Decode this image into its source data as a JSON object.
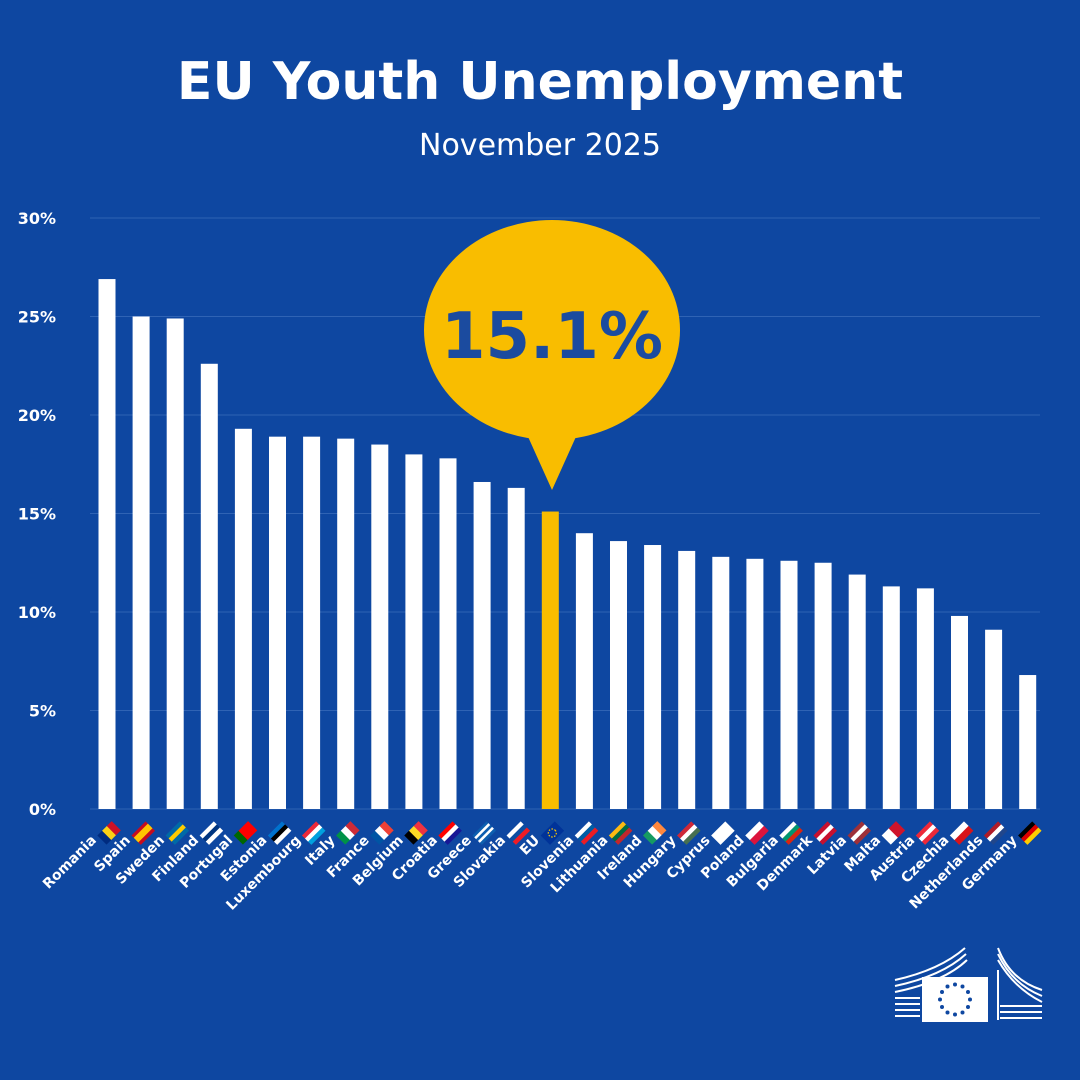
{
  "title": "EU Youth Unemployment",
  "subtitle": "November 2025",
  "chart_data": {
    "type": "bar",
    "title": "EU Youth Unemployment",
    "subtitle": "November 2025",
    "xlabel": "",
    "ylabel": "",
    "ylim": [
      0,
      30
    ],
    "yticks": [
      "0%",
      "5%",
      "10%",
      "15%",
      "20%",
      "25%",
      "30%"
    ],
    "grid": true,
    "highlight": {
      "category": "EU",
      "label": "15.1%",
      "color": "#f9bd00"
    },
    "bar_color": "#ffffff",
    "categories": [
      "Romania",
      "Spain",
      "Sweden",
      "Finland",
      "Portugal",
      "Estonia",
      "Luxembourg",
      "Italy",
      "France",
      "Belgium",
      "Croatia",
      "Greece",
      "Slovakia",
      "EU",
      "Slovenia",
      "Lithuania",
      "Ireland",
      "Hungary",
      "Cyprus",
      "Poland",
      "Bulgaria",
      "Denmark",
      "Latvia",
      "Malta",
      "Austria",
      "Czechia",
      "Netherlands",
      "Germany"
    ],
    "values": [
      26.9,
      25.0,
      24.9,
      22.6,
      19.3,
      18.9,
      18.9,
      18.8,
      18.5,
      18.0,
      17.8,
      16.6,
      16.3,
      15.1,
      14.0,
      13.6,
      13.4,
      13.1,
      12.8,
      12.7,
      12.6,
      12.5,
      11.9,
      11.3,
      11.2,
      9.8,
      9.1,
      6.8
    ],
    "flags": [
      {
        "dir": "v",
        "colors": [
          "#002b7f",
          "#fcd116",
          "#ce1126"
        ]
      },
      {
        "dir": "h",
        "colors": [
          "#c60b1e",
          "#ffc400",
          "#ffc400",
          "#c60b1e"
        ]
      },
      {
        "dir": "h",
        "colors": [
          "#006aa7",
          "#fecc00",
          "#006aa7"
        ]
      },
      {
        "dir": "h",
        "colors": [
          "#ffffff",
          "#003580",
          "#ffffff"
        ]
      },
      {
        "dir": "v",
        "colors": [
          "#006600",
          "#ff0000",
          "#ff0000"
        ]
      },
      {
        "dir": "h",
        "colors": [
          "#0072ce",
          "#000000",
          "#ffffff"
        ]
      },
      {
        "dir": "h",
        "colors": [
          "#ed2939",
          "#ffffff",
          "#00a1de"
        ]
      },
      {
        "dir": "v",
        "colors": [
          "#009246",
          "#ffffff",
          "#ce2b37"
        ]
      },
      {
        "dir": "v",
        "colors": [
          "#0055a4",
          "#ffffff",
          "#ef4135"
        ]
      },
      {
        "dir": "v",
        "colors": [
          "#000000",
          "#fdda24",
          "#ef3340"
        ]
      },
      {
        "dir": "h",
        "colors": [
          "#ff0000",
          "#ffffff",
          "#171796"
        ]
      },
      {
        "dir": "h",
        "colors": [
          "#0d5eaf",
          "#ffffff",
          "#0d5eaf",
          "#ffffff",
          "#0d5eaf"
        ]
      },
      {
        "dir": "h",
        "colors": [
          "#ffffff",
          "#0b4ea2",
          "#ee1c25"
        ]
      },
      {
        "dir": "h",
        "colors": [
          "#003399"
        ]
      },
      {
        "dir": "h",
        "colors": [
          "#ffffff",
          "#005da4",
          "#ed1c24"
        ]
      },
      {
        "dir": "h",
        "colors": [
          "#fdb913",
          "#006a44",
          "#c1272d"
        ]
      },
      {
        "dir": "v",
        "colors": [
          "#169b62",
          "#ffffff",
          "#ff883e"
        ]
      },
      {
        "dir": "h",
        "colors": [
          "#ce2939",
          "#ffffff",
          "#477050"
        ]
      },
      {
        "dir": "h",
        "colors": [
          "#ffffff"
        ]
      },
      {
        "dir": "h",
        "colors": [
          "#ffffff",
          "#dc143c"
        ]
      },
      {
        "dir": "h",
        "colors": [
          "#ffffff",
          "#00966e",
          "#d62612"
        ]
      },
      {
        "dir": "h",
        "colors": [
          "#c8102e",
          "#ffffff",
          "#c8102e"
        ]
      },
      {
        "dir": "h",
        "colors": [
          "#9e3039",
          "#ffffff",
          "#9e3039"
        ]
      },
      {
        "dir": "v",
        "colors": [
          "#ffffff",
          "#cf142b"
        ]
      },
      {
        "dir": "h",
        "colors": [
          "#ed2939",
          "#ffffff",
          "#ed2939"
        ]
      },
      {
        "dir": "h",
        "colors": [
          "#ffffff",
          "#d7141a"
        ]
      },
      {
        "dir": "h",
        "colors": [
          "#ae1c28",
          "#ffffff",
          "#21468b"
        ]
      },
      {
        "dir": "h",
        "colors": [
          "#000000",
          "#dd0000",
          "#ffce00"
        ]
      }
    ]
  }
}
